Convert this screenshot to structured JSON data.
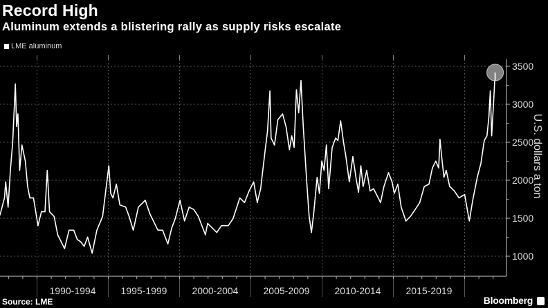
{
  "chart_data": {
    "type": "line",
    "title": "Record High",
    "subtitle": "Aluminum extends a blistering rally as supply risks escalate",
    "ylabel": "U.S. dollars a ton",
    "xlabel": "",
    "ylim": [
      1000,
      3500
    ],
    "yticks": [
      1000,
      1500,
      2000,
      2500,
      3000,
      3500
    ],
    "xlim": [
      1987.4,
      2022.9
    ],
    "xtick_labels": [
      "1990-1994",
      "1995-1999",
      "2000-2004",
      "2005-2009",
      "2010-2014",
      "2015-2019"
    ],
    "x_dividers": [
      1990,
      1995,
      2000,
      2005,
      2010,
      2015,
      2020
    ],
    "grid": true,
    "legend_placement": "top-left",
    "highlight": "last point circled",
    "colors": {
      "background": "#000000",
      "line": "#ffffff",
      "highlight": "#8a8a8a",
      "grid": "#555555"
    },
    "series": [
      {
        "name": "LME aluminum",
        "points": [
          [
            1987.4,
            1540
          ],
          [
            1987.72,
            1767
          ],
          [
            1987.8,
            1979
          ],
          [
            1987.97,
            1646
          ],
          [
            1988.13,
            2130
          ],
          [
            1988.29,
            2494
          ],
          [
            1988.48,
            3267
          ],
          [
            1988.57,
            2706
          ],
          [
            1988.66,
            2873
          ],
          [
            1988.78,
            2130
          ],
          [
            1988.94,
            2464
          ],
          [
            1989.18,
            2252
          ],
          [
            1989.34,
            1918
          ],
          [
            1989.5,
            1767
          ],
          [
            1989.75,
            1767
          ],
          [
            1990.07,
            1403
          ],
          [
            1990.31,
            1585
          ],
          [
            1990.56,
            1585
          ],
          [
            1990.72,
            2130
          ],
          [
            1990.88,
            1585
          ],
          [
            1991.2,
            1524
          ],
          [
            1991.45,
            1282
          ],
          [
            1991.93,
            1100
          ],
          [
            1992.25,
            1343
          ],
          [
            1992.58,
            1343
          ],
          [
            1992.82,
            1221
          ],
          [
            1993.06,
            1191
          ],
          [
            1993.31,
            1130
          ],
          [
            1993.55,
            1252
          ],
          [
            1993.87,
            1040
          ],
          [
            1994.2,
            1343
          ],
          [
            1994.6,
            1524
          ],
          [
            1994.84,
            1888
          ],
          [
            1995.04,
            2191
          ],
          [
            1995.17,
            1827
          ],
          [
            1995.33,
            1767
          ],
          [
            1995.57,
            1949
          ],
          [
            1995.81,
            1676
          ],
          [
            1996.22,
            1646
          ],
          [
            1996.46,
            1524
          ],
          [
            1996.75,
            1343
          ],
          [
            1997.11,
            1646
          ],
          [
            1997.59,
            1736
          ],
          [
            1997.92,
            1555
          ],
          [
            1998.48,
            1343
          ],
          [
            1998.81,
            1343
          ],
          [
            1999.18,
            1161
          ],
          [
            1999.45,
            1373
          ],
          [
            1999.7,
            1494
          ],
          [
            2000.03,
            1736
          ],
          [
            2000.35,
            1464
          ],
          [
            2000.67,
            1646
          ],
          [
            2001.0,
            1615
          ],
          [
            2001.32,
            1524
          ],
          [
            2001.81,
            1282
          ],
          [
            2001.97,
            1433
          ],
          [
            2002.61,
            1312
          ],
          [
            2002.94,
            1403
          ],
          [
            2003.42,
            1403
          ],
          [
            2003.75,
            1494
          ],
          [
            2004.23,
            1767
          ],
          [
            2004.56,
            1706
          ],
          [
            2004.88,
            1858
          ],
          [
            2005.2,
            1979
          ],
          [
            2005.45,
            1706
          ],
          [
            2005.69,
            1888
          ],
          [
            2006.01,
            2403
          ],
          [
            2006.17,
            2645
          ],
          [
            2006.34,
            3176
          ],
          [
            2006.42,
            2555
          ],
          [
            2006.66,
            2464
          ],
          [
            2006.9,
            2797
          ],
          [
            2007.23,
            2873
          ],
          [
            2007.47,
            2706
          ],
          [
            2007.71,
            2403
          ],
          [
            2007.87,
            2585
          ],
          [
            2008.04,
            2433
          ],
          [
            2008.2,
            3191
          ],
          [
            2008.36,
            2888
          ],
          [
            2008.52,
            3312
          ],
          [
            2008.68,
            2706
          ],
          [
            2008.93,
            1949
          ],
          [
            2009.09,
            1524
          ],
          [
            2009.25,
            1312
          ],
          [
            2009.41,
            1555
          ],
          [
            2009.65,
            2039
          ],
          [
            2009.81,
            1827
          ],
          [
            2009.98,
            2252
          ],
          [
            2010.14,
            2130
          ],
          [
            2010.3,
            2464
          ],
          [
            2010.46,
            1888
          ],
          [
            2010.71,
            2433
          ],
          [
            2010.95,
            2555
          ],
          [
            2011.11,
            2524
          ],
          [
            2011.3,
            2782
          ],
          [
            2011.51,
            2494
          ],
          [
            2011.67,
            2312
          ],
          [
            2011.91,
            1979
          ],
          [
            2012.16,
            2312
          ],
          [
            2012.4,
            2009
          ],
          [
            2012.56,
            1842
          ],
          [
            2012.72,
            2191
          ],
          [
            2012.88,
            1918
          ],
          [
            2013.13,
            2130
          ],
          [
            2013.37,
            1858
          ],
          [
            2013.61,
            1888
          ],
          [
            2013.86,
            1797
          ],
          [
            2014.1,
            1706
          ],
          [
            2014.34,
            1918
          ],
          [
            2014.66,
            2100
          ],
          [
            2014.91,
            1979
          ],
          [
            2015.07,
            1827
          ],
          [
            2015.31,
            1949
          ],
          [
            2015.55,
            1646
          ],
          [
            2015.88,
            1464
          ],
          [
            2016.2,
            1524
          ],
          [
            2016.53,
            1615
          ],
          [
            2016.85,
            1706
          ],
          [
            2017.17,
            1918
          ],
          [
            2017.5,
            1949
          ],
          [
            2017.74,
            2161
          ],
          [
            2017.98,
            2252
          ],
          [
            2018.18,
            2161
          ],
          [
            2018.27,
            2539
          ],
          [
            2018.39,
            2312
          ],
          [
            2018.55,
            2039
          ],
          [
            2018.71,
            2130
          ],
          [
            2018.95,
            1918
          ],
          [
            2019.28,
            1858
          ],
          [
            2019.6,
            1767
          ],
          [
            2020.0,
            1812
          ],
          [
            2020.33,
            1464
          ],
          [
            2020.57,
            1736
          ],
          [
            2020.89,
            2039
          ],
          [
            2021.14,
            2221
          ],
          [
            2021.38,
            2524
          ],
          [
            2021.57,
            2585
          ],
          [
            2021.7,
            2827
          ],
          [
            2021.8,
            3176
          ],
          [
            2021.9,
            2585
          ],
          [
            2022.03,
            3009
          ],
          [
            2022.14,
            3418
          ]
        ]
      }
    ]
  },
  "footer": {
    "source": "Source: LME",
    "brand": "Bloomberg"
  }
}
